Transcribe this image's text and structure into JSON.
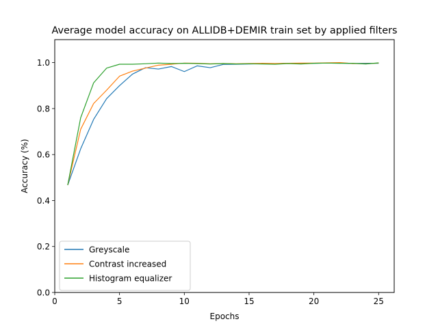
{
  "chart_data": {
    "type": "line",
    "title": "Average model accuracy on ALLIDB+DEMIR train set by applied filters",
    "xlabel": "Epochs",
    "ylabel": "Accuracy (%)",
    "xlim": [
      0,
      26.2
    ],
    "ylim": [
      0.0,
      1.1
    ],
    "xticks": [
      0,
      5,
      10,
      15,
      20,
      25
    ],
    "yticks": [
      0.0,
      0.2,
      0.4,
      0.6,
      0.8,
      1.0
    ],
    "xtick_labels": [
      "0",
      "5",
      "10",
      "15",
      "20",
      "25"
    ],
    "ytick_labels": [
      "0.0",
      "0.2",
      "0.4",
      "0.6",
      "0.8",
      "1.0"
    ],
    "grid": false,
    "legend_position": "bottom-left",
    "x": [
      1,
      2,
      3,
      4,
      5,
      6,
      7,
      8,
      9,
      10,
      11,
      12,
      13,
      14,
      15,
      16,
      17,
      18,
      19,
      20,
      21,
      22,
      23,
      24,
      25
    ],
    "series": [
      {
        "name": "Greyscale",
        "color": "#1f77b4",
        "values": [
          0.467,
          0.625,
          0.753,
          0.843,
          0.9,
          0.95,
          0.978,
          0.972,
          0.983,
          0.961,
          0.986,
          0.978,
          0.992,
          0.993,
          0.994,
          0.995,
          0.995,
          0.997,
          0.996,
          0.997,
          0.998,
          0.998,
          0.996,
          0.997,
          0.997
        ]
      },
      {
        "name": "Contrast increased",
        "color": "#ff7f0e",
        "values": [
          0.467,
          0.71,
          0.822,
          0.88,
          0.941,
          0.963,
          0.976,
          0.989,
          0.993,
          0.998,
          0.997,
          0.995,
          0.996,
          0.995,
          0.996,
          0.997,
          0.996,
          0.997,
          0.998,
          0.998,
          0.999,
          1.0,
          0.996,
          0.995,
          0.998
        ]
      },
      {
        "name": "Histogram equalizer",
        "color": "#2ca02c",
        "values": [
          0.467,
          0.76,
          0.912,
          0.976,
          0.993,
          0.993,
          0.995,
          0.998,
          0.996,
          0.997,
          0.996,
          0.994,
          0.996,
          0.994,
          0.995,
          0.994,
          0.993,
          0.996,
          0.994,
          0.997,
          0.998,
          0.997,
          0.997,
          0.994,
          0.999
        ]
      }
    ]
  }
}
